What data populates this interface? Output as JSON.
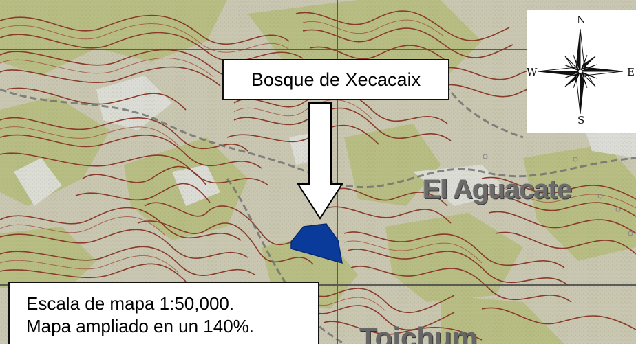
{
  "forest_label": "Bosque de Xecacaix",
  "place_names": {
    "primary": "El Aguacate",
    "partial_bottom": "Tojchum"
  },
  "scale_note": {
    "line1": "Escala de mapa 1:50,000.",
    "line2": "Mapa ampliado en un 140%."
  },
  "compass": {
    "north": "N",
    "south": "S",
    "east": "E",
    "west": "W"
  },
  "map_scale_ratio": "1:50,000",
  "enlargement_percent": 140,
  "colors": {
    "contour": "#8a3a2a",
    "vegetation": "#b9bf86",
    "open_ground": "#d9d9d9",
    "forest_polygon": "#0a3a9a",
    "grid_line": "#4a4a4a",
    "road": "#6e6e6e"
  },
  "icons": {
    "compass": "compass-rose-icon",
    "pointer": "down-arrow-icon"
  }
}
